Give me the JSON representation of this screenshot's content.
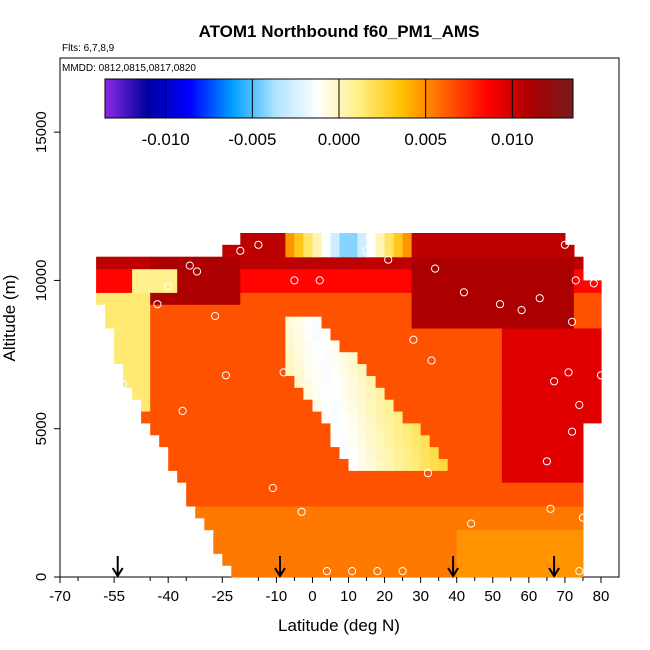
{
  "chart_data": {
    "type": "heatmap",
    "title": "ATOM1 Northbound f60_PM1_AMS",
    "subtitle": "Flts: 6,7,8,9",
    "annotation": "MMDD: 0812,0815,0817,0820",
    "xlabel": "Latitude (deg N)",
    "ylabel": "Altitude (m)",
    "xlim": [
      -70,
      85
    ],
    "ylim": [
      0,
      17500
    ],
    "x_ticks": [
      -70,
      -55,
      -40,
      -25,
      -10,
      0,
      10,
      20,
      30,
      40,
      50,
      60,
      70,
      80
    ],
    "y_ticks": [
      0,
      5000,
      10000,
      15000
    ],
    "colorbar": {
      "range": [
        -0.0135,
        0.0135
      ],
      "ticks": [
        -0.01,
        -0.005,
        0.0,
        0.005,
        0.01
      ],
      "tick_labels": [
        "-0.010",
        "-0.005",
        "0.000",
        "0.005",
        "0.010"
      ],
      "colors": [
        "#8a2be2",
        "#0000a0",
        "#0000ff",
        "#00a0ff",
        "#aee4ff",
        "#ffffff",
        "#ffee80",
        "#ffc000",
        "#ff6000",
        "#ff0000",
        "#aa0000",
        "#7a1a1a"
      ]
    },
    "arrows_latitude": [
      -54,
      -9,
      39,
      67
    ],
    "data_markers": [
      [
        -52.5,
        6500
      ],
      [
        -43,
        9200
      ],
      [
        -40,
        9800
      ],
      [
        -36,
        5600
      ],
      [
        -34,
        10500
      ],
      [
        -32,
        10300
      ],
      [
        -27,
        8800
      ],
      [
        -24,
        6800
      ],
      [
        -20,
        11000
      ],
      [
        -15,
        11200
      ],
      [
        -11,
        3000
      ],
      [
        -8,
        6900
      ],
      [
        -5,
        10000
      ],
      [
        -3,
        2200
      ],
      [
        -1,
        6800
      ],
      [
        2,
        10000
      ],
      [
        4,
        200
      ],
      [
        11,
        200
      ],
      [
        15,
        11000
      ],
      [
        18,
        200
      ],
      [
        21,
        10700
      ],
      [
        25,
        200
      ],
      [
        28,
        8000
      ],
      [
        33,
        7300
      ],
      [
        34,
        10400
      ],
      [
        32,
        3500
      ],
      [
        42,
        9600
      ],
      [
        44,
        1800
      ],
      [
        52,
        9200
      ],
      [
        58,
        9000
      ],
      [
        63,
        9400
      ],
      [
        65,
        3900
      ],
      [
        66,
        2300
      ],
      [
        67,
        6600
      ],
      [
        70,
        11200
      ],
      [
        71,
        6900
      ],
      [
        72,
        8600
      ],
      [
        72,
        4900
      ],
      [
        73,
        10000
      ],
      [
        74,
        5800
      ],
      [
        75,
        2000
      ],
      [
        74,
        200
      ],
      [
        78,
        9900
      ],
      [
        80,
        6800
      ]
    ],
    "grid": false,
    "legend": "colorbar top"
  }
}
